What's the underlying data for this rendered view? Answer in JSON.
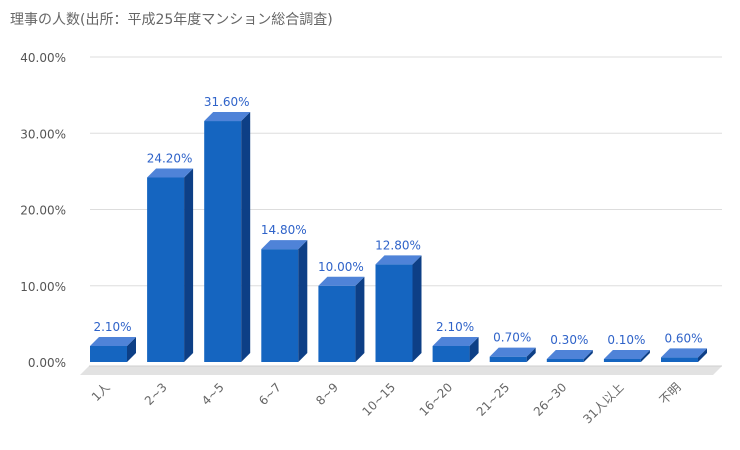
{
  "chart_data": {
    "type": "bar",
    "title": "理事の人数(出所：平成25年度マンション総合調査)",
    "xlabel": "",
    "ylabel": "",
    "ylim": [
      0,
      40
    ],
    "yticks": [
      "0.00%",
      "10.00%",
      "20.00%",
      "30.00%",
      "40.00%"
    ],
    "categories": [
      "1人",
      "2~3",
      "4~5",
      "6~7",
      "8~9",
      "10~15",
      "16~20",
      "21~25",
      "26~30",
      "31人以上",
      "不明"
    ],
    "values": [
      2.1,
      24.2,
      31.6,
      14.8,
      10.0,
      12.8,
      2.1,
      0.7,
      0.3,
      0.1,
      0.6
    ],
    "data_labels": [
      "2.10%",
      "24.20%",
      "31.60%",
      "14.80%",
      "10.00%",
      "12.80%",
      "2.10%",
      "0.70%",
      "0.30%",
      "0.10%",
      "0.60%"
    ],
    "grid": true,
    "legend": "none",
    "colors": {
      "bar_front": "#1565c0",
      "bar_top": "#4f83d8",
      "bar_side": "#0d3f86",
      "label": "#2f63c9",
      "floor": "#e2e2e2"
    }
  }
}
